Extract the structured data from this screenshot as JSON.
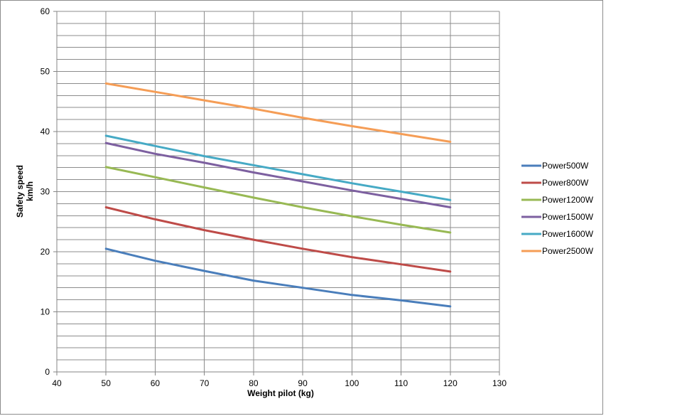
{
  "chart_data": {
    "type": "line",
    "xlabel": "Weight pilot (kg)",
    "ylabel": "Safety speed",
    "ylabel_unit": "km/h",
    "xlim": [
      40,
      130
    ],
    "ylim": [
      0,
      60
    ],
    "xticks": [
      40,
      50,
      60,
      70,
      80,
      90,
      100,
      110,
      120,
      130
    ],
    "yticks": [
      0,
      10,
      20,
      30,
      40,
      50,
      60
    ],
    "grid": true,
    "legend_position": "right",
    "x": [
      50,
      60,
      70,
      80,
      90,
      100,
      110,
      120
    ],
    "series": [
      {
        "name": "Power500W",
        "color": "#4a7ebb",
        "values": [
          20.5,
          18.5,
          16.8,
          15.2,
          14.0,
          12.8,
          11.9,
          10.9
        ]
      },
      {
        "name": "Power800W",
        "color": "#be4b48",
        "values": [
          27.4,
          25.4,
          23.6,
          22.0,
          20.5,
          19.1,
          17.9,
          16.7
        ]
      },
      {
        "name": "Power1200W",
        "color": "#98b954",
        "values": [
          34.1,
          32.4,
          30.7,
          29.0,
          27.4,
          25.9,
          24.5,
          23.2
        ]
      },
      {
        "name": "Power1500W",
        "color": "#7d60a0",
        "values": [
          38.1,
          36.3,
          34.8,
          33.2,
          31.7,
          30.2,
          28.8,
          27.4
        ]
      },
      {
        "name": "Power1600W",
        "color": "#46aac5",
        "values": [
          39.3,
          37.6,
          35.9,
          34.4,
          32.9,
          31.4,
          30.0,
          28.6
        ]
      },
      {
        "name": "Power2500W",
        "color": "#f59d56",
        "values": [
          48.0,
          46.6,
          45.2,
          43.8,
          42.3,
          40.9,
          39.6,
          38.3
        ]
      }
    ]
  }
}
